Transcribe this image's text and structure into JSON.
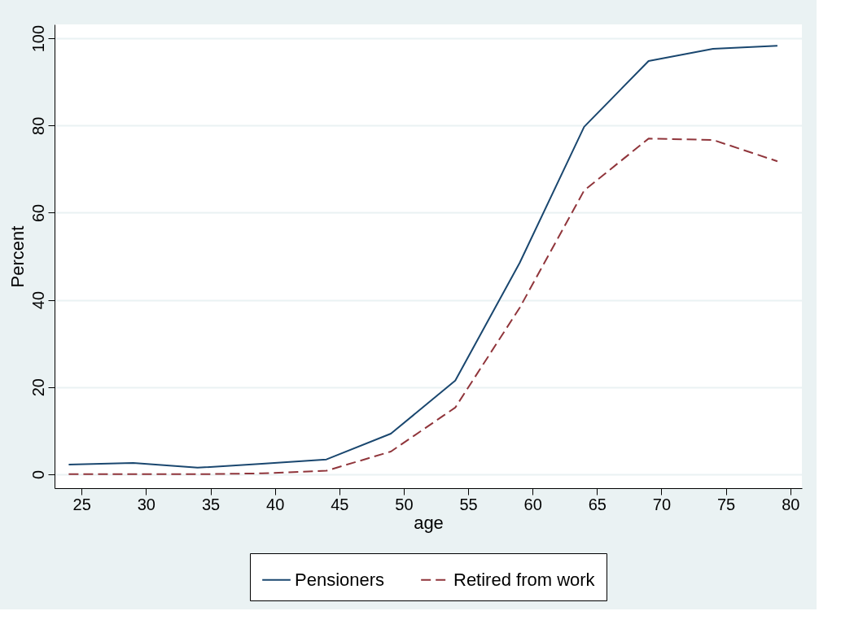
{
  "chart_data": {
    "type": "line",
    "xlabel": "age",
    "ylabel": "Percent",
    "x": [
      24,
      29,
      34,
      39,
      44,
      49,
      54,
      59,
      64,
      69,
      74,
      79
    ],
    "series": [
      {
        "name": "Pensioners",
        "color": "#1a476f",
        "line_style": "solid",
        "values": [
          2.2,
          2.6,
          1.5,
          2.4,
          3.4,
          9.3,
          21.5,
          48.5,
          79.7,
          94.8,
          97.6,
          98.3
        ]
      },
      {
        "name": "Retired from work",
        "color": "#90353b",
        "line_style": "dashed",
        "values": [
          0,
          0,
          0,
          0.2,
          0.8,
          5.2,
          15.3,
          38.2,
          65.1,
          77.0,
          76.7,
          71.8
        ]
      }
    ],
    "xlim": [
      22.9,
      80.9
    ],
    "xticks": [
      25,
      30,
      35,
      40,
      45,
      50,
      55,
      60,
      65,
      70,
      75,
      80
    ],
    "ylim": [
      -3.2,
      103.2
    ],
    "yticks": [
      0,
      20,
      40,
      60,
      80,
      100
    ],
    "grid": "y",
    "legend": "bottom",
    "marker": "none"
  }
}
